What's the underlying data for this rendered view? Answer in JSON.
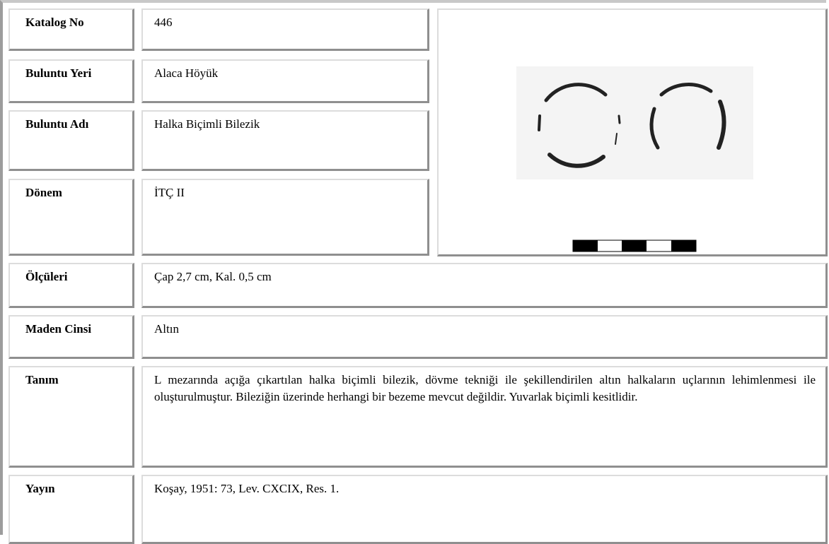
{
  "rows": [
    {
      "label": "Katalog No",
      "value": "446"
    },
    {
      "label": "Buluntu Yeri",
      "value": "Alaca Höyük"
    },
    {
      "label": "Buluntu Adı",
      "value": "Halka Biçimli Bilezik"
    },
    {
      "label": "Dönem",
      "value": "İTÇ II"
    },
    {
      "label": "Ölçüleri",
      "value": "Çap 2,7 cm, Kal. 0,5 cm"
    },
    {
      "label": "Maden Cinsi",
      "value": "Altın"
    },
    {
      "label": "Tanım",
      "value": "L mezarında açığa çıkartılan halka biçimli bilezik, dövme tekniği ile şekillendirilen altın halkaların uçlarının lehimlenmesi ile oluşturulmuştur. Bileziğin üzerinde herhangi bir bezeme mevcut değildir. Yuvarlak biçimli kesitlidir."
    },
    {
      "label": "Yayın",
      "value": "Koşay, 1951: 73, Lev. CXCIX, Res. 1."
    }
  ]
}
